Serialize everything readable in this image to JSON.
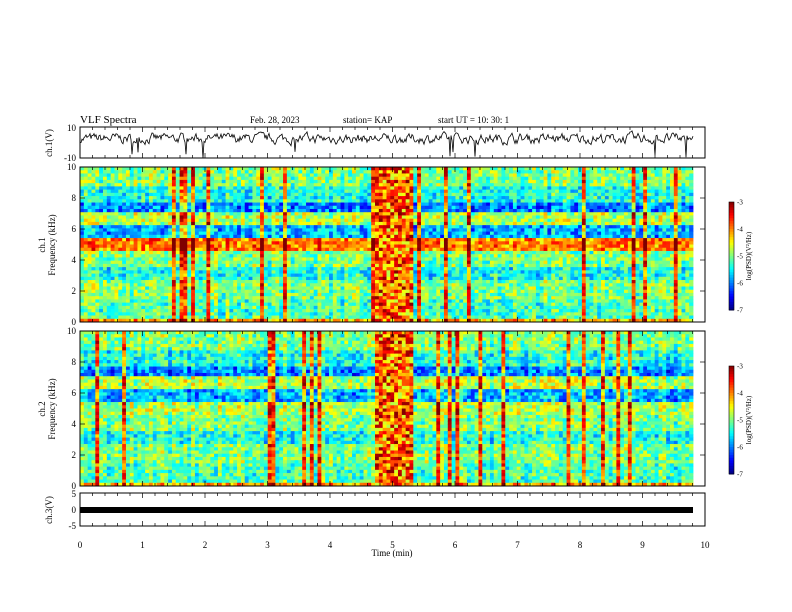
{
  "header": {
    "title": "VLF Spectra",
    "date": "Feb. 28, 2023",
    "station": "station= KAP",
    "start": "start  UT =   10: 30: 1"
  },
  "chart_data": [
    {
      "type": "line",
      "title": "",
      "ylabel": "ch.1(V)",
      "ylim": [
        -10,
        10
      ],
      "yticks": [
        "10",
        "-10"
      ],
      "xlim": [
        0,
        10
      ],
      "series": [
        {
          "style": "noisy-waveform",
          "baseline": 2.5,
          "amplitude": 5
        }
      ]
    },
    {
      "type": "heatmap",
      "ylabel_line1": "ch.1",
      "ylabel_line2": "Frequency (kHz)",
      "ylim": [
        0,
        10
      ],
      "yticks": [
        "0",
        "2",
        "4",
        "6",
        "8",
        "10"
      ],
      "xlim": [
        0,
        10
      ],
      "colorbar": {
        "label": "log(PSD)(V²/Hz)",
        "range": [
          -7,
          -3
        ],
        "ticks": [
          "-3",
          "-4",
          "-5",
          "-6",
          "-7"
        ]
      },
      "bright_interval_min": [
        4.75,
        5.35
      ]
    },
    {
      "type": "heatmap",
      "ylabel_line1": "ch.2",
      "ylabel_line2": "Frequency (kHz)",
      "ylim": [
        0,
        10
      ],
      "yticks": [
        "0",
        "2",
        "4",
        "6",
        "8",
        "10"
      ],
      "xlim": [
        0,
        10
      ],
      "colorbar": {
        "label": "log(PSD)(V²/Hz)",
        "range": [
          -7,
          -3
        ],
        "ticks": [
          "-3",
          "-4",
          "-5",
          "-6",
          "-7"
        ]
      },
      "bright_interval_min": [
        4.75,
        5.35
      ]
    },
    {
      "type": "line",
      "ylabel": "ch.3(V)",
      "ylim": [
        -5,
        5
      ],
      "yticks": [
        "5",
        "0",
        "-5"
      ],
      "xlim": [
        0,
        10
      ],
      "xticks": [
        "0",
        "1",
        "2",
        "3",
        "4",
        "5",
        "6",
        "7",
        "8",
        "9",
        "10"
      ],
      "xlabel": "Time (min)",
      "series": [
        {
          "style": "flat",
          "value": 0
        }
      ]
    }
  ]
}
